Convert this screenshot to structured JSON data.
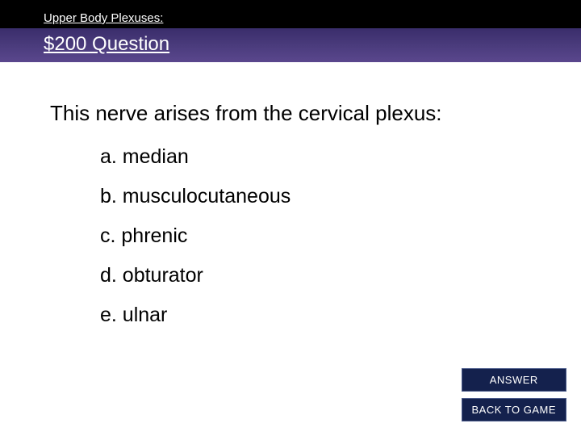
{
  "header": {
    "category": "Upper Body Plexuses:",
    "question_label": "$200 Question"
  },
  "question": {
    "text": "This nerve arises from the cervical plexus:",
    "options": [
      "a. median",
      "b. musculocutaneous",
      "c. phrenic",
      "d. obturator",
      "e. ulnar"
    ]
  },
  "buttons": {
    "answer": "ANSWER",
    "back": "BACK TO GAME"
  },
  "colors": {
    "header_bg_top": "#000000",
    "header_bg_gradient_start": "#3a2d6b",
    "header_bg_gradient_end": "#5a478d",
    "header_text": "#ffffff",
    "body_bg": "#ffffff",
    "text": "#000000",
    "button_bg": "#14214d",
    "button_border": "#4a5a8a",
    "button_text": "#ffffff"
  },
  "typography": {
    "category_fontsize": 15,
    "question_label_fontsize": 24,
    "question_text_fontsize": 26,
    "option_fontsize": 25,
    "button_fontsize": 13
  }
}
